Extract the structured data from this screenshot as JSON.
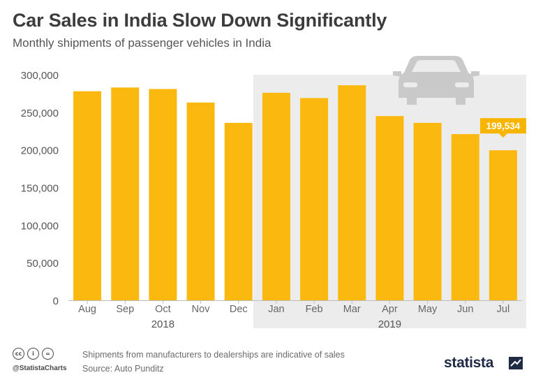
{
  "title": "Car Sales in India Slow Down Significantly",
  "subtitle": "Monthly shipments of passenger vehicles in India",
  "colors": {
    "bar": "#fbb80f",
    "highlight_bg": "#ececec",
    "car_icon": "#c9c9c9",
    "label_bg": "#f7b500"
  },
  "chart_data": {
    "type": "bar",
    "categories": [
      "Aug",
      "Sep",
      "Oct",
      "Nov",
      "Dec",
      "Jan",
      "Feb",
      "Mar",
      "Apr",
      "May",
      "Jun",
      "Jul"
    ],
    "values": [
      278000,
      283000,
      281000,
      263000,
      236000,
      276000,
      269000,
      286000,
      245000,
      236000,
      221000,
      199534
    ],
    "ylim": [
      0,
      300000
    ],
    "yticks": [
      0,
      50000,
      100000,
      150000,
      200000,
      250000,
      300000
    ],
    "ytick_labels": [
      "0",
      "50,000",
      "100,000",
      "150,000",
      "200,000",
      "250,000",
      "300,000"
    ],
    "year_groups": [
      {
        "label": "2018",
        "start": 0,
        "end": 4
      },
      {
        "label": "2019",
        "start": 5,
        "end": 11
      }
    ],
    "highlight_start": 5,
    "callout": {
      "index": 11,
      "text": "199,534"
    },
    "grid": false,
    "legend": "none"
  },
  "footer": {
    "note": "Shipments from manufacturers to dealerships are indicative of sales",
    "source": "Source: Auto Punditz",
    "handle": "@StatistaCharts",
    "brand": "statista",
    "license_icons": [
      "cc",
      "i",
      "="
    ]
  }
}
